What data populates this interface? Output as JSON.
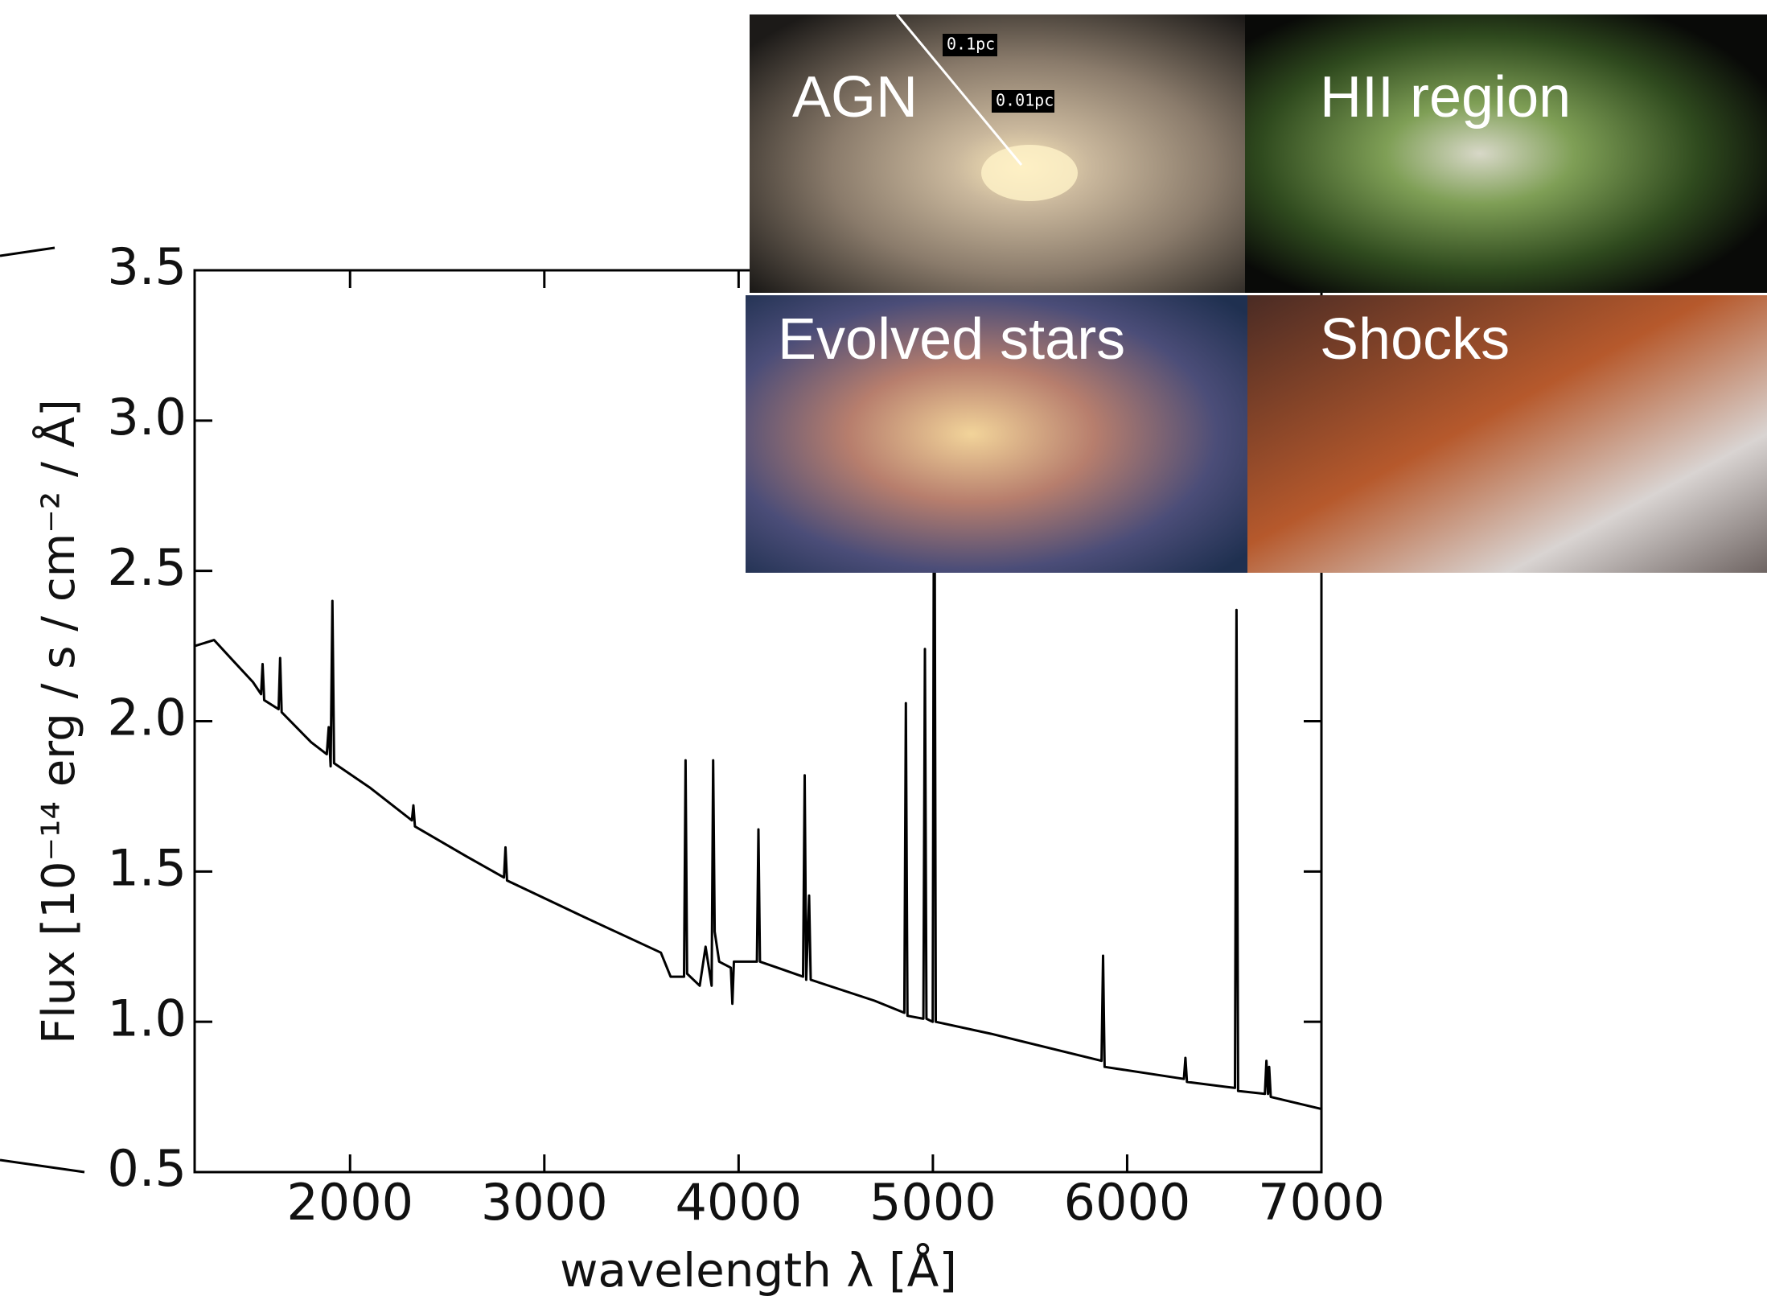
{
  "chart_data": {
    "type": "line",
    "xlabel": "wavelength λ [Å]",
    "ylabel": "Flux [10⁻¹⁴ erg / s / cm⁻² / Å]",
    "xlim": [
      1200,
      7000
    ],
    "xticks": [
      2000,
      3000,
      4000,
      5000,
      6000,
      7000
    ],
    "ylim": [
      0.5,
      3.5
    ],
    "yticks": [
      0.5,
      {
        "value": 1,
        "label": "1.0"
      },
      1.5,
      {
        "value": 2,
        "label": "2.0"
      },
      2.5,
      {
        "value": 3,
        "label": "3.0"
      },
      3.5
    ],
    "color": "#000000",
    "x": [
      1200,
      1300,
      1400,
      1500,
      1542,
      1550,
      1558,
      1632,
      1640,
      1648,
      1800,
      1880,
      1890,
      1900,
      1909,
      1918,
      2100,
      2318,
      2326,
      2334,
      2600,
      2792,
      2800,
      2808,
      3200,
      3600,
      3650,
      3719,
      3727,
      3735,
      3800,
      3830,
      3861,
      3869,
      3877,
      3900,
      3960,
      3968,
      3976,
      4094,
      4102,
      4110,
      4200,
      4332,
      4340,
      4348,
      4363,
      4371,
      4700,
      4853,
      4861,
      4869,
      4951,
      4959,
      4967,
      4999,
      5007,
      5015,
      5300,
      5868,
      5876,
      5884,
      6292,
      6300,
      6308,
      6555,
      6563,
      6571,
      6709,
      6717,
      6725,
      6731,
      6739,
      7000
    ],
    "values": [
      2.25,
      2.27,
      2.2,
      2.13,
      2.09,
      2.19,
      2.07,
      2.04,
      2.21,
      2.03,
      1.93,
      1.89,
      1.98,
      1.85,
      2.4,
      1.86,
      1.78,
      1.67,
      1.72,
      1.65,
      1.55,
      1.48,
      1.58,
      1.47,
      1.35,
      1.23,
      1.15,
      1.15,
      1.87,
      1.16,
      1.12,
      1.25,
      1.12,
      1.87,
      1.3,
      1.2,
      1.18,
      1.06,
      1.2,
      1.2,
      1.64,
      1.2,
      1.18,
      1.15,
      1.82,
      1.14,
      1.42,
      1.14,
      1.07,
      1.03,
      2.06,
      1.02,
      1.01,
      2.24,
      1.01,
      1.0,
      3.3,
      1.0,
      0.96,
      0.87,
      1.22,
      0.85,
      0.81,
      0.88,
      0.8,
      0.78,
      2.37,
      0.77,
      0.76,
      0.87,
      0.76,
      0.85,
      0.75,
      0.71
    ]
  },
  "panels": {
    "agn": "AGN",
    "agn_scale_1": "0.1pc",
    "agn_scale_2": "0.01pc",
    "hii": "HII region",
    "evolved": "Evolved stars",
    "shocks": "Shocks"
  }
}
